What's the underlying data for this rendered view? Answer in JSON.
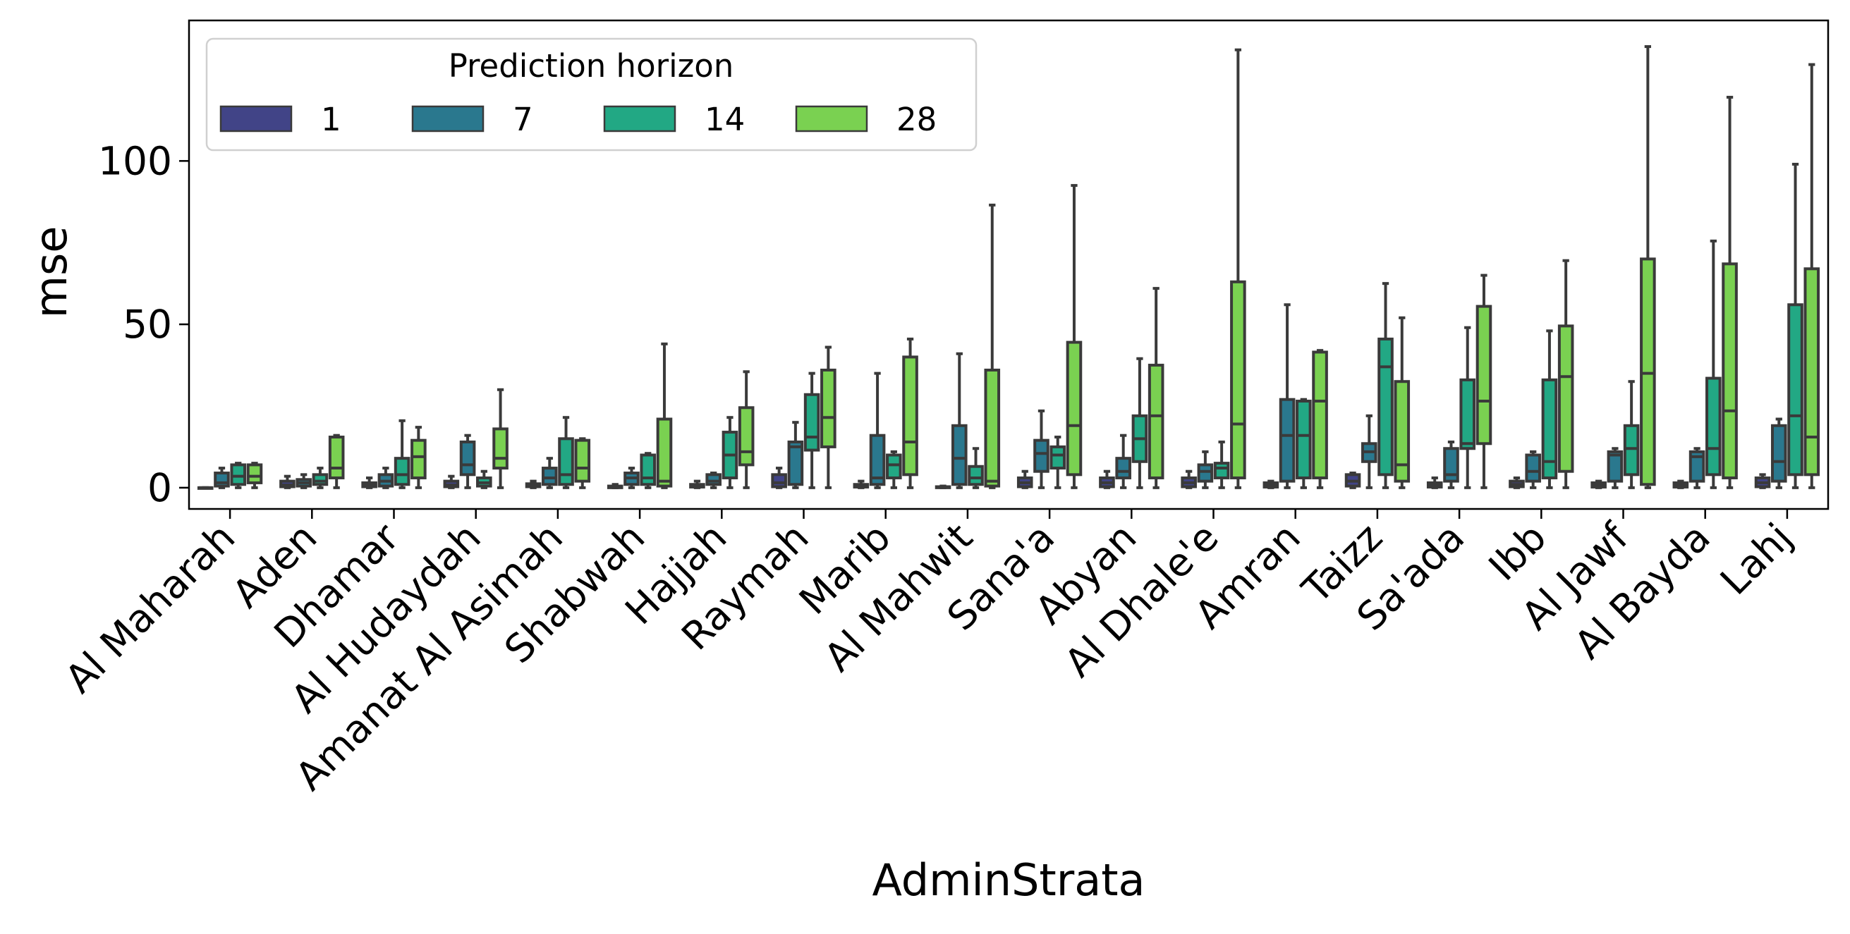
{
  "chart_data": {
    "type": "box",
    "xlabel": "AdminStrata",
    "ylabel": "mse",
    "ylim": [
      -6.5,
      143
    ],
    "yticks": [
      0,
      50,
      100
    ],
    "ytick_labels": [
      "0",
      "50",
      "100"
    ],
    "grid": false,
    "legend": {
      "title": "Prediction horizon",
      "placement": "top-left",
      "labels": [
        "1",
        "7",
        "14",
        "28"
      ]
    },
    "colors": [
      "#414487",
      "#2a788e",
      "#22a884",
      "#7ad151"
    ],
    "edge_color": "#3a3a3a",
    "categories": [
      "Al Maharah",
      "Aden",
      "Dhamar",
      "Al Hudaydah",
      "Amanat Al Asimah",
      "Shabwah",
      "Hajjah",
      "Raymah",
      "Marib",
      "Al Mahwit",
      "Sana'a",
      "Abyan",
      "Al Dhale'e",
      "Amran",
      "Taizz",
      "Sa'ada",
      "Ibb",
      "Al Jawf",
      "Al Bayda",
      "Lahj"
    ],
    "series": [
      {
        "name": "1",
        "boxes": [
          [
            0,
            0,
            0,
            0,
            0
          ],
          [
            0,
            0.3,
            0.8,
            2,
            3.5
          ],
          [
            0,
            0.3,
            0.8,
            1.5,
            3
          ],
          [
            0,
            0.3,
            0.8,
            2,
            3.5
          ],
          [
            0,
            0.3,
            0.7,
            1.2,
            2
          ],
          [
            0,
            0,
            0.2,
            0.5,
            1
          ],
          [
            0,
            0.2,
            0.5,
            1,
            2
          ],
          [
            0,
            0.3,
            1.5,
            4,
            6
          ],
          [
            0,
            0.2,
            0.5,
            1,
            2
          ],
          [
            0,
            0,
            0.1,
            0.3,
            0.5
          ],
          [
            0,
            0.3,
            1.5,
            3,
            5
          ],
          [
            0,
            0.3,
            1.5,
            3,
            5
          ],
          [
            0,
            0.3,
            1.5,
            3,
            5
          ],
          [
            0,
            0.2,
            0.7,
            1.5,
            2
          ],
          [
            0,
            0.5,
            2,
            4,
            4.5
          ],
          [
            0,
            0.2,
            0.7,
            1.5,
            3
          ],
          [
            0,
            0.3,
            1,
            2,
            3
          ],
          [
            0,
            0.2,
            0.7,
            1.5,
            2
          ],
          [
            0,
            0.2,
            0.7,
            1.5,
            2
          ],
          [
            0,
            0.3,
            1.5,
            3,
            4
          ]
        ]
      },
      {
        "name": "7",
        "boxes": [
          [
            0,
            0.5,
            1.5,
            4.5,
            6
          ],
          [
            0,
            0.5,
            1.5,
            2.5,
            4
          ],
          [
            0,
            0.5,
            2,
            4,
            6
          ],
          [
            0,
            4,
            7,
            14,
            16
          ],
          [
            0,
            1,
            3,
            6,
            9
          ],
          [
            0,
            1,
            3,
            4.5,
            6
          ],
          [
            0,
            1,
            2,
            4,
            4.5
          ],
          [
            0,
            1,
            12.5,
            14,
            20
          ],
          [
            0,
            1,
            3,
            16,
            35
          ],
          [
            0,
            1,
            9,
            19,
            41
          ],
          [
            0,
            5,
            10.5,
            14.5,
            23.5
          ],
          [
            0,
            3,
            5,
            9,
            16
          ],
          [
            0,
            2,
            5,
            7,
            11
          ],
          [
            0,
            2,
            16,
            27,
            56
          ],
          [
            0,
            8,
            11,
            13.5,
            22
          ],
          [
            0,
            2,
            4,
            12,
            14
          ],
          [
            0,
            2,
            5,
            10,
            11
          ],
          [
            0,
            2,
            10,
            11,
            12
          ],
          [
            0,
            2,
            9.5,
            11,
            12
          ],
          [
            0,
            2,
            8,
            19,
            21
          ]
        ]
      },
      {
        "name": "14",
        "boxes": [
          [
            0,
            1,
            3.5,
            7,
            7.5
          ],
          [
            0,
            1,
            2,
            4,
            6
          ],
          [
            0,
            1,
            4,
            9,
            20.5
          ],
          [
            0,
            0.5,
            1.5,
            3,
            5
          ],
          [
            0,
            1,
            4,
            15,
            21.5
          ],
          [
            0,
            1,
            3,
            10,
            10.5
          ],
          [
            0,
            3,
            10,
            17,
            21.5
          ],
          [
            0,
            11.5,
            15.5,
            28.5,
            35
          ],
          [
            0,
            3,
            7,
            10,
            11
          ],
          [
            0,
            1,
            3,
            6.5,
            12
          ],
          [
            0,
            6,
            10,
            12.5,
            15.5
          ],
          [
            0,
            8,
            15,
            22,
            39.5
          ],
          [
            0,
            3,
            6,
            7.5,
            14
          ],
          [
            0,
            3,
            16,
            26.5,
            27
          ],
          [
            0,
            4,
            37,
            45.5,
            62.5
          ],
          [
            0,
            12,
            13.5,
            33,
            49
          ],
          [
            0,
            3,
            8,
            33,
            48
          ],
          [
            0,
            4,
            12,
            19,
            32.5
          ],
          [
            0,
            4,
            12,
            33.5,
            75.5
          ],
          [
            0,
            4,
            22,
            56,
            99
          ]
        ]
      },
      {
        "name": "28",
        "boxes": [
          [
            0,
            1.5,
            3.5,
            7,
            7.5
          ],
          [
            0,
            3,
            6,
            15.5,
            16
          ],
          [
            0,
            3,
            9.5,
            14.5,
            18.5
          ],
          [
            0,
            6,
            9,
            18,
            30
          ],
          [
            0,
            2,
            6,
            14.5,
            15
          ],
          [
            0,
            0.5,
            2,
            21,
            44
          ],
          [
            0,
            7,
            11,
            24.5,
            35.5
          ],
          [
            0,
            12.5,
            21.5,
            36,
            43
          ],
          [
            0,
            4,
            14,
            40,
            45.5
          ],
          [
            0,
            0.5,
            2,
            36,
            86.5
          ],
          [
            0,
            4,
            19,
            44.5,
            92.5
          ],
          [
            0,
            3,
            22,
            37.5,
            61
          ],
          [
            0,
            3,
            19.5,
            63,
            134
          ],
          [
            0,
            3,
            26.5,
            41.5,
            42
          ],
          [
            0,
            2,
            7,
            32.5,
            52
          ],
          [
            0,
            13.5,
            26.5,
            55.5,
            65
          ],
          [
            0,
            5,
            34,
            49.5,
            69.5
          ],
          [
            0,
            1,
            35,
            70,
            135
          ],
          [
            0,
            3,
            23.5,
            68.5,
            119.5
          ],
          [
            0,
            4,
            15.5,
            67,
            129.5
          ]
        ]
      }
    ]
  }
}
